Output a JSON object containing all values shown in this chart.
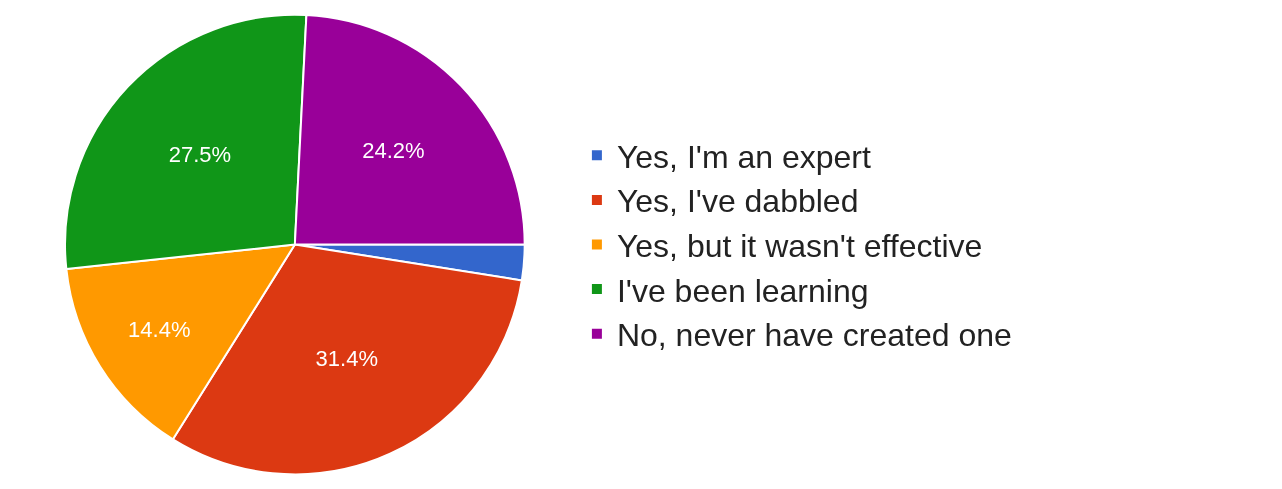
{
  "chart_data": {
    "type": "pie",
    "categories": [
      "Yes, I'm an expert",
      "Yes, I've dabbled",
      "Yes, but it wasn't effective",
      "I've been learning",
      "No, never have created one"
    ],
    "values": [
      2.5,
      31.4,
      14.4,
      27.5,
      24.2
    ],
    "value_labels": [
      null,
      "31.4%",
      "14.4%",
      "27.5%",
      "24.2%"
    ],
    "colors": [
      "#3366cc",
      "#dc3912",
      "#ff9900",
      "#109618",
      "#990099"
    ],
    "legend": "right"
  }
}
